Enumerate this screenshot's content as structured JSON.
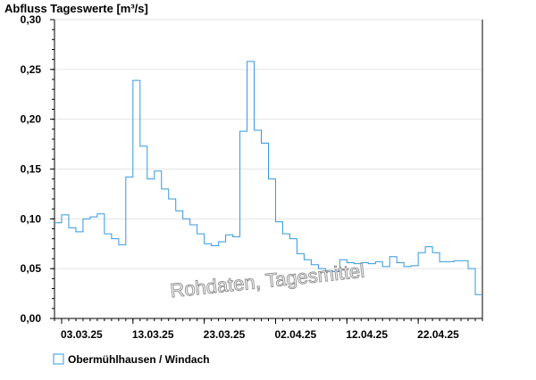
{
  "chart_data": {
    "type": "line",
    "step": true,
    "title": "Abfluss Tageswerte [m³/s]",
    "ylim": [
      0,
      0.3
    ],
    "yticks": [
      0.0,
      0.05,
      0.1,
      0.15,
      0.2,
      0.25,
      0.3
    ],
    "ytick_labels": [
      "0,00",
      "0,05",
      "0,10",
      "0,15",
      "0,20",
      "0,25",
      "0,30"
    ],
    "xlim": [
      "2025-03-02",
      "2025-05-01"
    ],
    "xticks": [
      "2025-03-03",
      "2025-03-13",
      "2025-03-23",
      "2025-04-02",
      "2025-04-12",
      "2025-04-22"
    ],
    "xtick_labels": [
      "03.03.25",
      "13.03.25",
      "23.03.25",
      "02.04.25",
      "12.04.25",
      "22.04.25"
    ],
    "grid": true,
    "legend_position": "bottom-left",
    "watermark": "Rohdaten, Tagesmittel",
    "series": [
      {
        "name": "Obermühlhausen / Windach",
        "color": "#3399dd",
        "x": [
          "2025-03-02",
          "2025-03-03",
          "2025-03-04",
          "2025-03-05",
          "2025-03-06",
          "2025-03-07",
          "2025-03-08",
          "2025-03-09",
          "2025-03-10",
          "2025-03-11",
          "2025-03-12",
          "2025-03-13",
          "2025-03-14",
          "2025-03-15",
          "2025-03-16",
          "2025-03-17",
          "2025-03-18",
          "2025-03-19",
          "2025-03-20",
          "2025-03-21",
          "2025-03-22",
          "2025-03-23",
          "2025-03-24",
          "2025-03-25",
          "2025-03-26",
          "2025-03-27",
          "2025-03-28",
          "2025-03-29",
          "2025-03-30",
          "2025-03-31",
          "2025-04-01",
          "2025-04-02",
          "2025-04-03",
          "2025-04-04",
          "2025-04-05",
          "2025-04-06",
          "2025-04-07",
          "2025-04-08",
          "2025-04-09",
          "2025-04-10",
          "2025-04-11",
          "2025-04-12",
          "2025-04-13",
          "2025-04-14",
          "2025-04-15",
          "2025-04-16",
          "2025-04-17",
          "2025-04-18",
          "2025-04-19",
          "2025-04-20",
          "2025-04-21",
          "2025-04-22",
          "2025-04-23",
          "2025-04-24",
          "2025-04-25",
          "2025-04-26",
          "2025-04-27",
          "2025-04-28",
          "2025-04-29",
          "2025-04-30"
        ],
        "values": [
          0.096,
          0.104,
          0.091,
          0.087,
          0.1,
          0.102,
          0.105,
          0.085,
          0.08,
          0.074,
          0.142,
          0.239,
          0.173,
          0.14,
          0.148,
          0.13,
          0.12,
          0.108,
          0.1,
          0.094,
          0.085,
          0.075,
          0.073,
          0.077,
          0.084,
          0.082,
          0.188,
          0.258,
          0.189,
          0.176,
          0.14,
          0.097,
          0.085,
          0.08,
          0.065,
          0.059,
          0.054,
          0.05,
          0.048,
          0.047,
          0.059,
          0.056,
          0.055,
          0.056,
          0.055,
          0.057,
          0.052,
          0.062,
          0.056,
          0.052,
          0.053,
          0.066,
          0.072,
          0.066,
          0.057,
          0.057,
          0.058,
          0.058,
          0.05,
          0.024
        ]
      }
    ]
  }
}
